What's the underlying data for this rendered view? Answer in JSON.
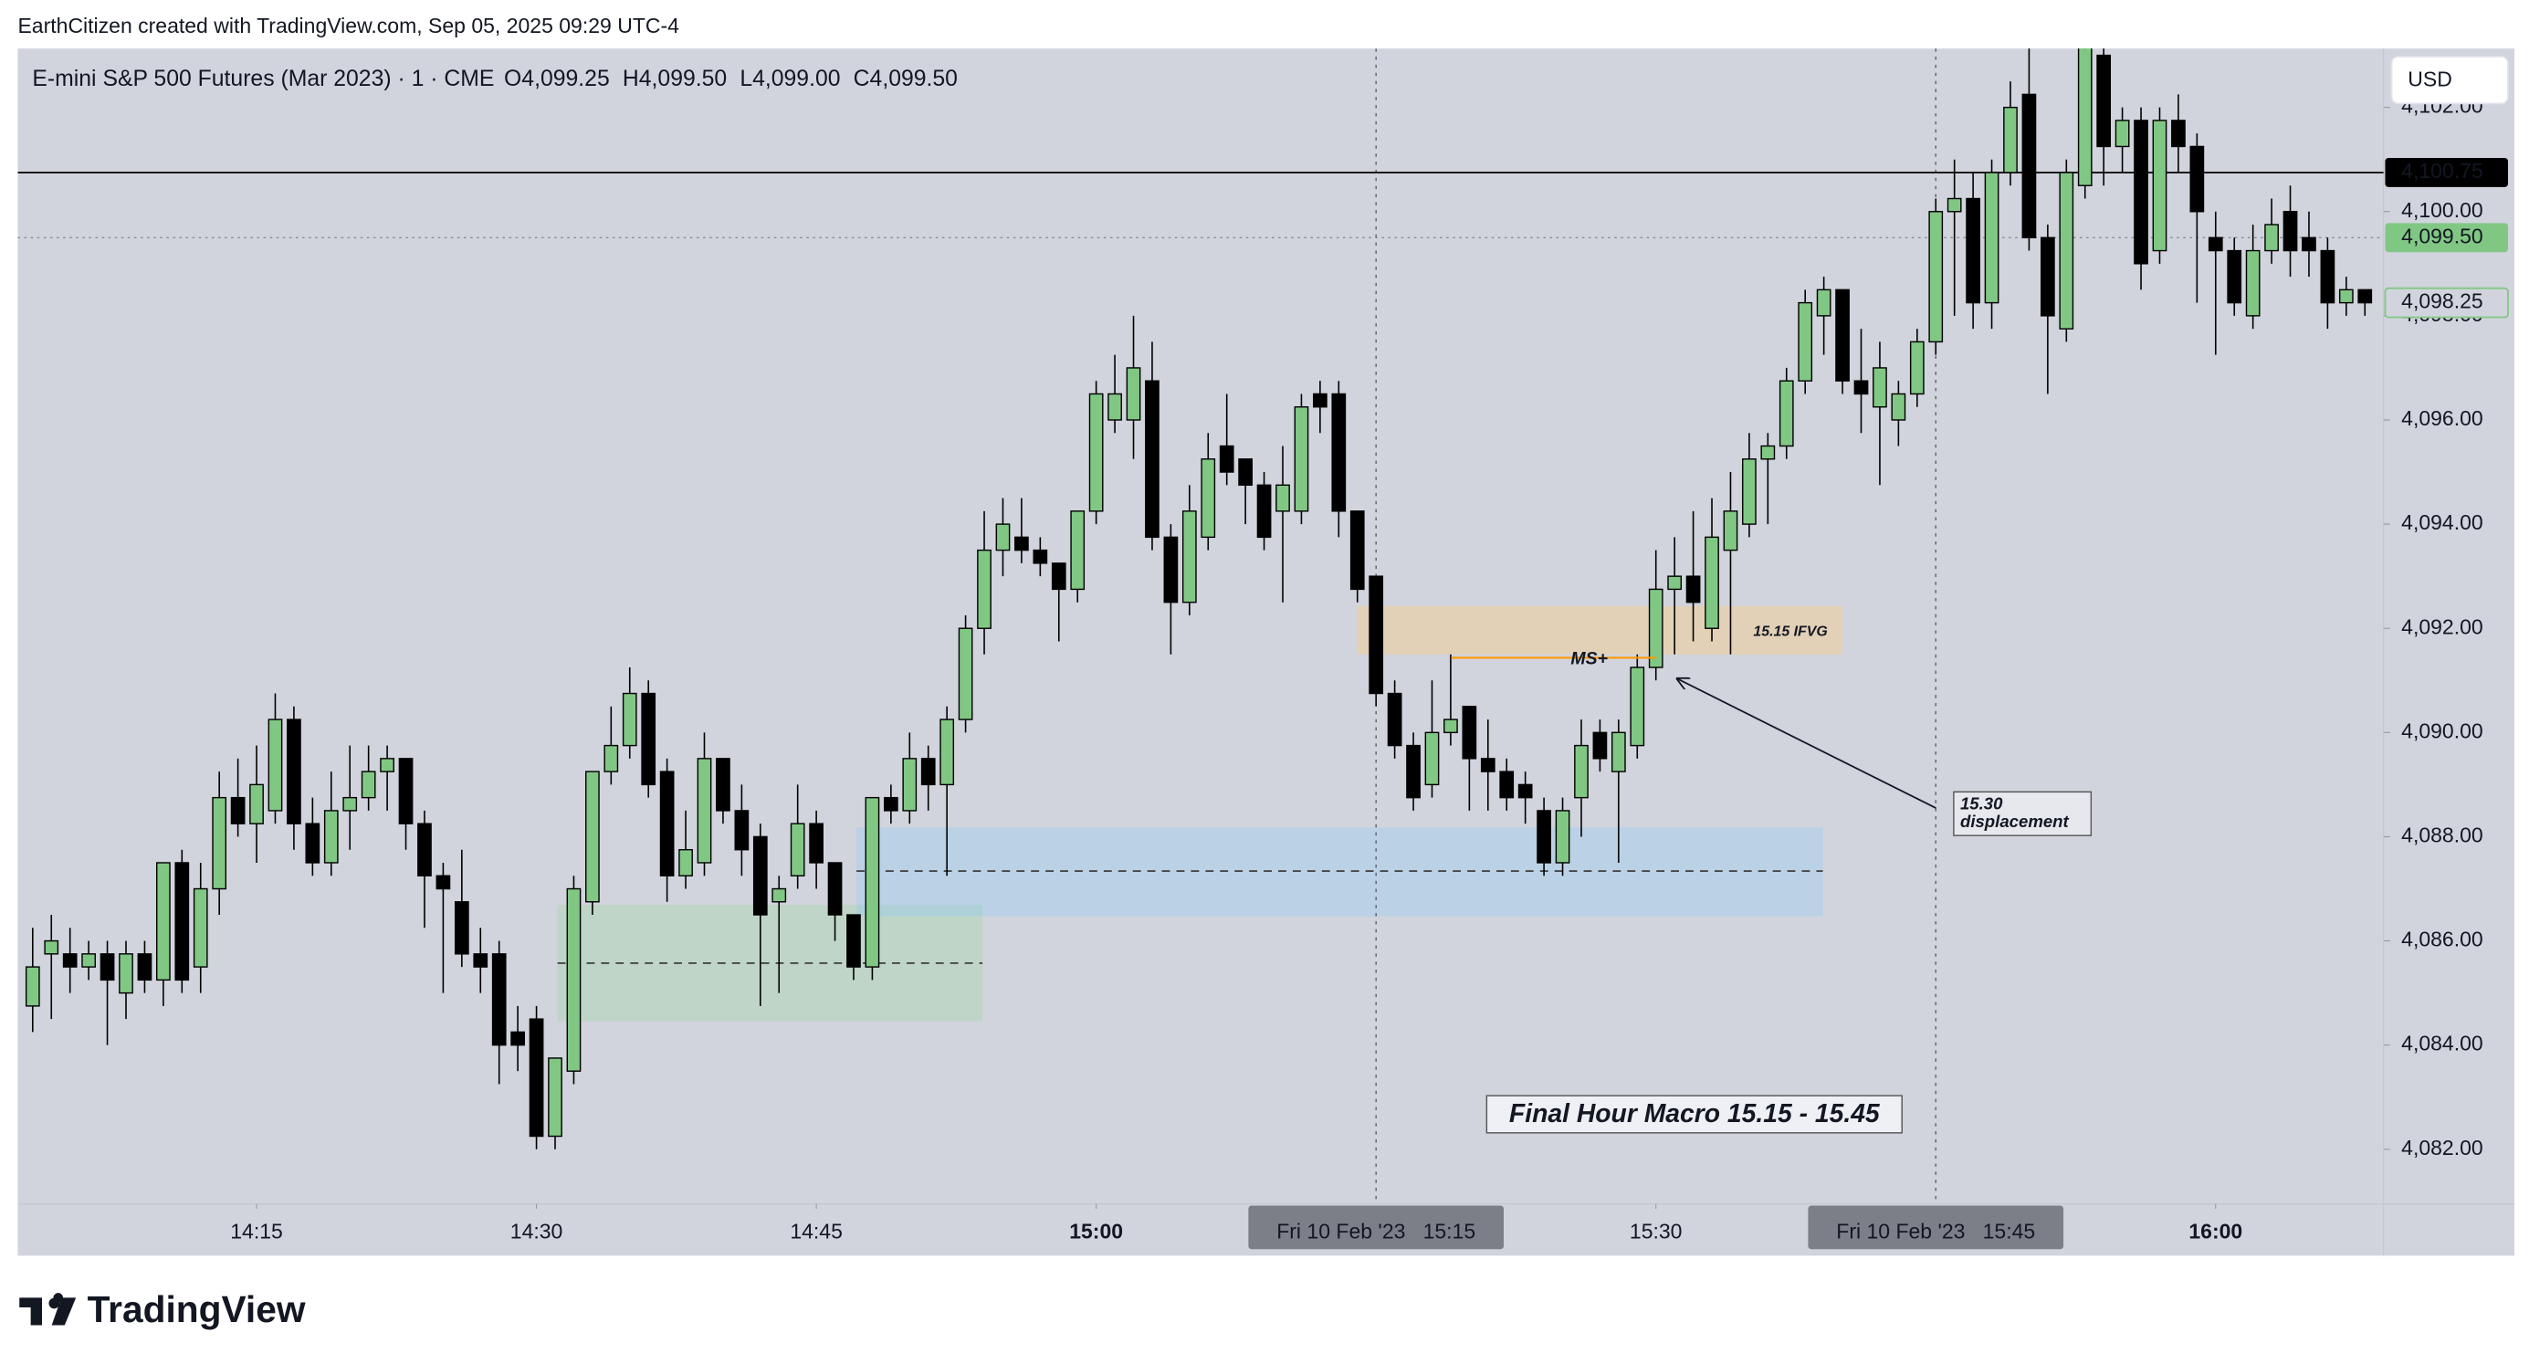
{
  "header": {
    "attribution": "EarthCitizen created with TradingView.com, Sep 05, 2025 09:29 UTC-4"
  },
  "chart_data": {
    "type": "candlestick",
    "title": "E-mini S&P 500 Futures (Mar 2023) · 1 · CME",
    "ohlc_legend": [
      "O4,099.25",
      "H4,099.50",
      "L4,099.00",
      "C4,099.50"
    ],
    "currency": "USD",
    "open": [
      4084.75,
      4085.75,
      4085.75,
      4085.5,
      4085.75,
      4085,
      4085.75,
      4085.25,
      4087.5,
      4085.5,
      4087,
      4088.75,
      4088.25,
      4088.5,
      4090.25,
      4088.25,
      4087.5,
      4088.5,
      4088.75,
      4089.25,
      4089.5,
      4088.25,
      4087.25,
      4086.75,
      4085.75,
      4085.75,
      4084.25,
      4084.5,
      4082.25,
      4083.5,
      4086.75,
      4089.25,
      4089.75,
      4090.75,
      4089.25,
      4087.25,
      4087.5,
      4089.5,
      4088.5,
      4088,
      4086.75,
      4087.25,
      4088.25,
      4087.5,
      4086.5,
      4085.5,
      4088.75,
      4088.5,
      4089.5,
      4089,
      4090.25,
      4092,
      4093.5,
      4093.75,
      4093.5,
      4093.25,
      4092.75,
      4094.25,
      4096,
      4096,
      4096.75,
      4093.75,
      4092.5,
      4093.75,
      4095.5,
      4095.25,
      4094.75,
      4094.25,
      4094.25,
      4096.5,
      4096.5,
      4094.25,
      4093,
      4090.75,
      4089.75,
      4089,
      4090,
      4090.5,
      4089.5,
      4089.25,
      4089,
      4088.5,
      4087.5,
      4088.75,
      4090,
      4089.25,
      4089.75,
      4091.25,
      4092.75,
      4093,
      4092,
      4093.5,
      4094,
      4095.25,
      4095.5,
      4096.75,
      4098,
      4098.5,
      4096.75,
      4096.25,
      4096,
      4096.5,
      4097.5,
      4100,
      4100.25,
      4098.25,
      4100.75,
      4102.25,
      4099.5,
      4097.75,
      4100.5,
      4103,
      4101.25,
      4101.75,
      4099.25,
      4101.75,
      4101.25,
      4099.5,
      4099.25,
      4098,
      4099.25,
      4100,
      4099.5,
      4099.25,
      4098.25,
      4098.5
    ],
    "high": [
      4086.25,
      4086.5,
      4086.25,
      4086,
      4086,
      4086,
      4086,
      4087.5,
      4087.75,
      4087.5,
      4089.25,
      4089.5,
      4089.75,
      4090.75,
      4090.5,
      4088.75,
      4089.25,
      4089.75,
      4089.75,
      4089.75,
      4089.5,
      4088.5,
      4087.5,
      4087.75,
      4086.25,
      4086,
      4084.75,
      4084.75,
      4083.75,
      4087.25,
      4089.25,
      4090.5,
      4091.25,
      4091,
      4089.5,
      4088.5,
      4090,
      4089.5,
      4089,
      4088.25,
      4087.25,
      4089,
      4088.5,
      4087.5,
      4086.5,
      4088.75,
      4089,
      4090,
      4089.75,
      4090.5,
      4092.25,
      4094.25,
      4094.5,
      4094.5,
      4093.75,
      4093.25,
      4094.25,
      4096.75,
      4097.25,
      4098,
      4097.5,
      4094,
      4094.75,
      4095.75,
      4096.5,
      4095.25,
      4095,
      4095.5,
      4096.5,
      4096.75,
      4096.75,
      4094.25,
      4093,
      4091,
      4090,
      4091,
      4091.5,
      4090.5,
      4090.25,
      4089.5,
      4089.25,
      4088.75,
      4088.75,
      4090.25,
      4090.25,
      4090.25,
      4091.5,
      4093.5,
      4093.75,
      4094.25,
      4094.5,
      4095,
      4095.75,
      4095.75,
      4097,
      4098.5,
      4098.75,
      4098.5,
      4097.75,
      4097.5,
      4096.75,
      4097.75,
      4100.25,
      4101,
      4100.75,
      4101,
      4102.5,
      4103.5,
      4099.75,
      4101,
      4103.25,
      4103.25,
      4102,
      4102,
      4102,
      4102.25,
      4101.5,
      4100,
      4099.5,
      4099.75,
      4100.25,
      4100.5,
      4100,
      4099.5,
      4098.75,
      4098.5
    ],
    "low": [
      4084.25,
      4084.5,
      4085,
      4085.25,
      4084,
      4084.5,
      4085,
      4084.75,
      4085,
      4085,
      4086.5,
      4088,
      4087.5,
      4088.25,
      4087.75,
      4087.25,
      4087.25,
      4087.75,
      4088.5,
      4088.5,
      4087.75,
      4086.25,
      4085,
      4085.5,
      4085,
      4083.25,
      4083.5,
      4082,
      4082,
      4083.25,
      4086.5,
      4089,
      4089.5,
      4088.75,
      4086.75,
      4087,
      4087.25,
      4088.25,
      4087.25,
      4084.75,
      4085,
      4087,
      4087,
      4086,
      4085.25,
      4085.25,
      4088.25,
      4088.25,
      4088.5,
      4087.25,
      4090,
      4091.5,
      4093,
      4093.25,
      4093,
      4091.75,
      4092.5,
      4094,
      4095.75,
      4095.25,
      4093.5,
      4091.5,
      4092.25,
      4093.5,
      4094.75,
      4094,
      4093.5,
      4092.5,
      4094,
      4095.75,
      4093.75,
      4092.5,
      4090.5,
      4089.5,
      4088.5,
      4088.75,
      4089.75,
      4088.5,
      4088.5,
      4088.5,
      4088.25,
      4087.25,
      4087.25,
      4088,
      4089.25,
      4087.5,
      4089.5,
      4091,
      4091.5,
      4091.75,
      4091.75,
      4091.5,
      4093.75,
      4094,
      4095.25,
      4096.5,
      4097.25,
      4096.5,
      4095.75,
      4094.75,
      4095.5,
      4096.25,
      4097.25,
      4098,
      4097.75,
      4097.75,
      4100.5,
      4099.25,
      4096.5,
      4097.5,
      4100.25,
      4100.5,
      4100.75,
      4098.5,
      4099,
      4100.75,
      4098.25,
      4097.25,
      4098,
      4097.75,
      4099,
      4098.75,
      4098.75,
      4097.75,
      4098,
      4098
    ],
    "close": [
      4085.5,
      4086,
      4085.5,
      4085.75,
      4085.25,
      4085.75,
      4085.25,
      4087.5,
      4085.25,
      4087,
      4088.75,
      4088.25,
      4089,
      4090.25,
      4088.25,
      4087.5,
      4088.5,
      4088.75,
      4089.25,
      4089.5,
      4088.25,
      4087.25,
      4087,
      4085.75,
      4085.5,
      4084,
      4084,
      4082.25,
      4083.75,
      4087,
      4089.25,
      4089.75,
      4090.75,
      4089,
      4087.25,
      4087.75,
      4089.5,
      4088.5,
      4087.75,
      4086.5,
      4087,
      4088.25,
      4087.5,
      4086.5,
      4085.5,
      4088.75,
      4088.5,
      4089.5,
      4089,
      4090.25,
      4092,
      4093.5,
      4094,
      4093.5,
      4093.25,
      4092.75,
      4094.25,
      4096.5,
      4096.5,
      4097,
      4093.75,
      4092.5,
      4094.25,
      4095.25,
      4095,
      4094.75,
      4093.75,
      4094.75,
      4096.25,
      4096.25,
      4094.25,
      4092.75,
      4090.75,
      4089.75,
      4088.75,
      4090,
      4090.25,
      4089.5,
      4089.25,
      4088.75,
      4088.75,
      4087.5,
      4088.5,
      4089.75,
      4089.5,
      4090,
      4091.25,
      4092.75,
      4093,
      4092.5,
      4093.75,
      4094.25,
      4095.25,
      4095.5,
      4096.75,
      4098.25,
      4098.5,
      4096.75,
      4096.5,
      4097,
      4096.5,
      4097.5,
      4100,
      4100.25,
      4098.25,
      4100.75,
      4102,
      4099.5,
      4098,
      4100.75,
      4103.25,
      4101.25,
      4101.75,
      4099,
      4101.75,
      4101.25,
      4100,
      4099.25,
      4098.25,
      4099.25,
      4099.75,
      4099.25,
      4099.25,
      4098.25,
      4098.5,
      4098.25
    ],
    "xlim": [
      -0.8,
      126
    ],
    "xticks": [
      {
        "value": 12,
        "label": "14:15"
      },
      {
        "value": 27,
        "label": "14:30"
      },
      {
        "value": 42,
        "label": "14:45"
      },
      {
        "value": 57,
        "label": "15:00"
      },
      {
        "value": 87,
        "label": "15:30"
      },
      {
        "value": 117,
        "label": "16:00"
      }
    ],
    "ylim": [
      4080.95,
      4103.13
    ],
    "yticks": [
      {
        "value": 4082,
        "label": "4,082.00"
      },
      {
        "value": 4084,
        "label": "4,084.00"
      },
      {
        "value": 4086,
        "label": "4,086.00"
      },
      {
        "value": 4088,
        "label": "4,088.00"
      },
      {
        "value": 4090,
        "label": "4,090.00"
      },
      {
        "value": 4092,
        "label": "4,092.00"
      },
      {
        "value": 4094,
        "label": "4,094.00"
      },
      {
        "value": 4096,
        "label": "4,096.00"
      },
      {
        "value": 4098,
        "label": "4,098.00"
      },
      {
        "value": 4100,
        "label": "4,100.00"
      },
      {
        "value": 4102,
        "label": "4,102.00"
      }
    ],
    "price_lines": [
      {
        "value": 4100.75,
        "label": "4,100.75"
      },
      {
        "value": 4099.5,
        "label": "4,099.50"
      }
    ],
    "price_marker": {
      "value": 4098.25,
      "label": "4,098.25"
    },
    "crosshair_labels": [
      {
        "value": 72,
        "label": "Fri 10 Feb '23   15:15"
      },
      {
        "value": 102,
        "label": "Fri 10 Feb '23   15:45"
      }
    ],
    "annotations": {
      "ifvg": "15.15 IFVG",
      "ms": "MS+",
      "displacement": [
        "15.30",
        "displacement"
      ],
      "macro": "Final Hour Macro 15.15 - 15.45"
    },
    "up_color": "#81c784",
    "down_color": "#000000",
    "grid": false
  },
  "footer": {
    "logo": "TradingView"
  }
}
